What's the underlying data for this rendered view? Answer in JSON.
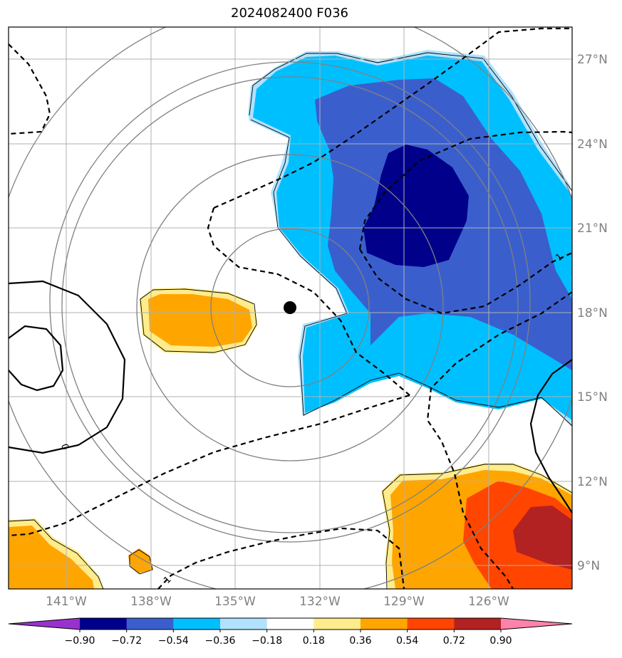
{
  "title": "2024082400 F036",
  "lon_ticks": [
    "141°W",
    "138°W",
    "135°W",
    "132°W",
    "129°W",
    "126°W"
  ],
  "lat_ticks": [
    "27°N",
    "24°N",
    "21°N",
    "18°N",
    "15°N",
    "12°N",
    "9°N"
  ],
  "colorbar": {
    "labels": [
      "−0.90",
      "−0.72",
      "−0.54",
      "−0.36",
      "−0.18",
      "0.18",
      "0.36",
      "0.54",
      "0.72",
      "0.90"
    ],
    "colors": [
      "#9932cc",
      "#00008b",
      "#3a5fcd",
      "#00bfff",
      "#b0e2ff",
      "#ffffff",
      "#ffec8b",
      "#ffa500",
      "#ff4500",
      "#b22222",
      "#ff82ab"
    ]
  },
  "contour_labels": [
    "1",
    "0",
    "1"
  ],
  "colors": {
    "grid": "#b0b0b0",
    "range_rings": "#808080",
    "storm_center": "#000000"
  }
}
